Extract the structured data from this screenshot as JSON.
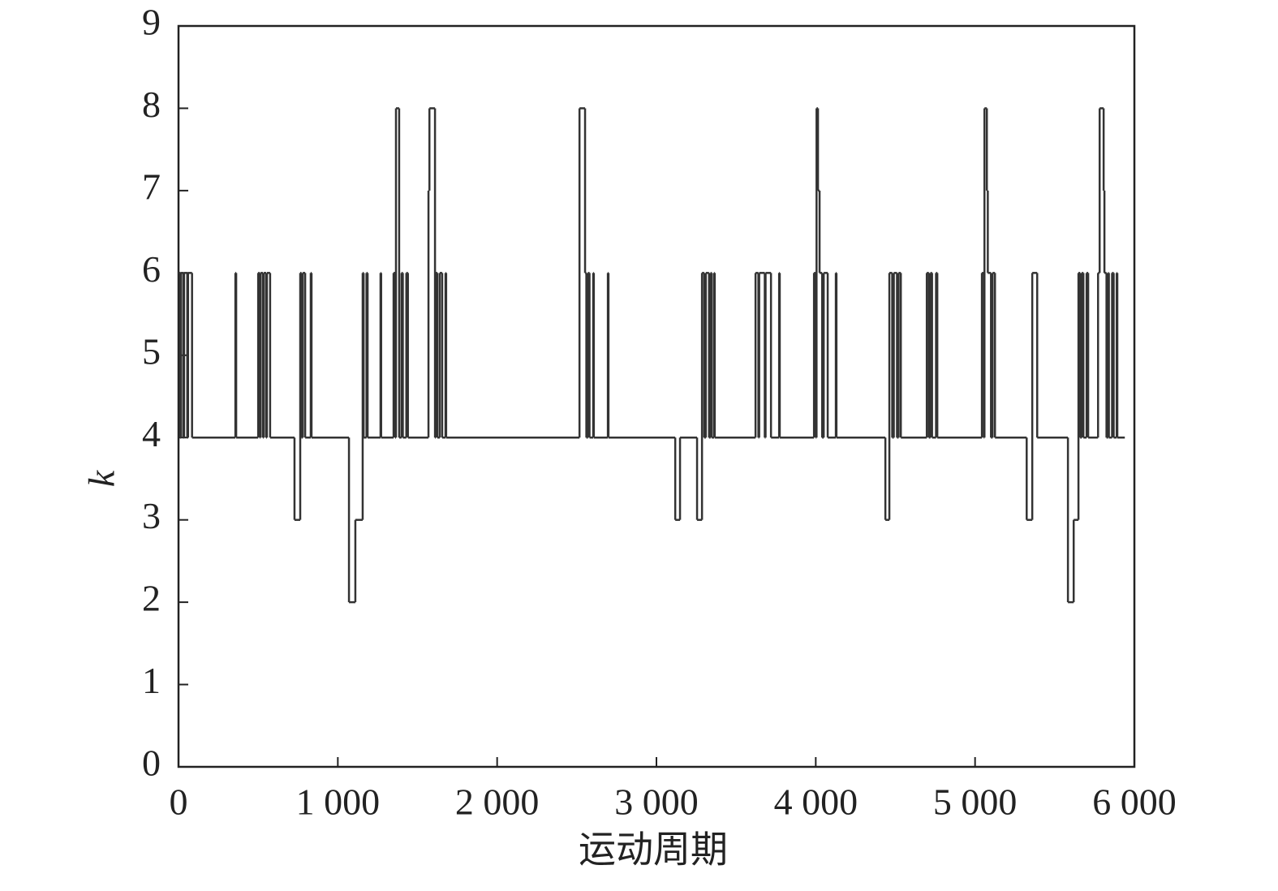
{
  "chart_data": {
    "type": "step",
    "x_label": "运动周期",
    "y_label": "k",
    "color": "#333333",
    "x": [
      0,
      10,
      15,
      30,
      35,
      55,
      60,
      85,
      357,
      362,
      500,
      510,
      515,
      530,
      535,
      550,
      555,
      575,
      728,
      764,
      772,
      780,
      795,
      830,
      835,
      1070,
      1110,
      1156,
      1162,
      1180,
      1187,
      1268,
      1272,
      1350,
      1360,
      1365,
      1385,
      1400,
      1408,
      1430,
      1440,
      1569,
      1575,
      1610,
      1615,
      1625,
      1640,
      1655,
      1676,
      1680,
      2517,
      2552,
      2560,
      2570,
      2580,
      2603,
      2607,
      2695,
      2699,
      3118,
      3148,
      3255,
      3286,
      3300,
      3310,
      3330,
      3340,
      3347,
      3362,
      3366,
      3622,
      3640,
      3645,
      3680,
      3685,
      3719,
      3770,
      3774,
      3989,
      4000,
      4005,
      4014,
      4024,
      4040,
      4050,
      4075,
      4126,
      4130,
      4437,
      4462,
      4480,
      4490,
      4510,
      4520,
      4534,
      4697,
      4710,
      4720,
      4730,
      4755,
      4763,
      5043,
      5055,
      5059,
      5074,
      5080,
      5100,
      5110,
      5125,
      5324,
      5359,
      5390,
      5583,
      5619,
      5649,
      5660,
      5670,
      5680,
      5700,
      5710,
      5772,
      5782,
      5807,
      5812,
      5825,
      5835,
      5840,
      5860,
      5870,
      5889,
      5893,
      5940
    ],
    "values": [
      6,
      4,
      6,
      4,
      6,
      4,
      6,
      4,
      6,
      4,
      6,
      4,
      6,
      4,
      6,
      4,
      6,
      4,
      3,
      6,
      4,
      6,
      4,
      6,
      4,
      2,
      3,
      6,
      4,
      6,
      4,
      6,
      4,
      6,
      4,
      8,
      4,
      6,
      4,
      6,
      4,
      7,
      8,
      4,
      6,
      4,
      6,
      4,
      6,
      4,
      8,
      6,
      4,
      6,
      4,
      6,
      4,
      6,
      4,
      3,
      4,
      3,
      6,
      4,
      6,
      4,
      6,
      4,
      6,
      4,
      6,
      4,
      6,
      4,
      6,
      4,
      6,
      4,
      6,
      4,
      8,
      7,
      6,
      4,
      6,
      4,
      6,
      4,
      3,
      6,
      4,
      6,
      4,
      6,
      4,
      6,
      4,
      6,
      4,
      6,
      4,
      6,
      4,
      8,
      7,
      6,
      4,
      6,
      4,
      3,
      6,
      4,
      2,
      3,
      6,
      4,
      6,
      4,
      6,
      4,
      6,
      8,
      7,
      6,
      4,
      6,
      4,
      6,
      4,
      6,
      4,
      4
    ],
    "xlim": [
      0,
      6000
    ],
    "ylim": [
      0,
      9
    ],
    "xticks": [
      0,
      {
        "value": 1000,
        "label": "1 000"
      },
      {
        "value": 2000,
        "label": "2 000"
      },
      {
        "value": 3000,
        "label": "3 000"
      },
      {
        "value": 4000,
        "label": "4 000"
      },
      {
        "value": 5000,
        "label": "5 000"
      },
      {
        "value": 6000,
        "label": "6 000"
      }
    ],
    "yticks": [
      0,
      1,
      2,
      3,
      4,
      5,
      6,
      7,
      8,
      9
    ]
  }
}
